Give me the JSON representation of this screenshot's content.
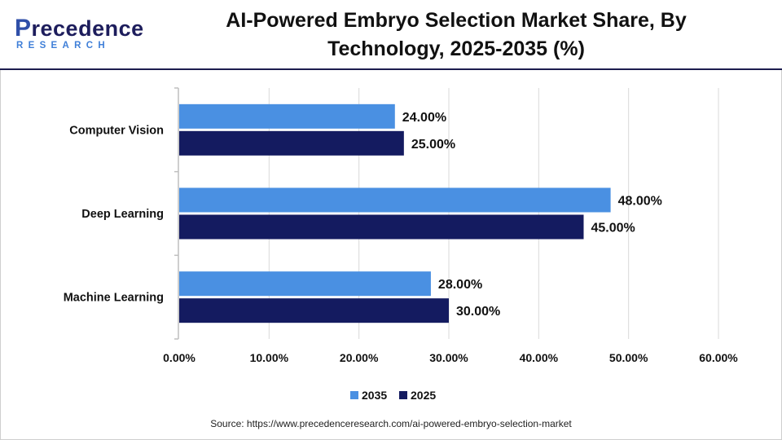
{
  "brand": {
    "logo_main_first": "P",
    "logo_main_rest": "recedence",
    "logo_sub": "RESEARCH"
  },
  "colors": {
    "series_2035": "#4a90e2",
    "series_2025": "#141b60",
    "header_rule": "#1d1d4f",
    "grid": "#d9d9d9"
  },
  "chart_data": {
    "type": "bar",
    "orientation": "horizontal",
    "title": "AI-Powered Embryo Selection Market Share, By Technology, 2025-2035 (%)",
    "categories": [
      "Computer Vision",
      "Deep Learning",
      "Machine Learning"
    ],
    "series": [
      {
        "name": "2035",
        "values": [
          24,
          48,
          28
        ],
        "labels": [
          "24.00%",
          "48.00%",
          "28.00%"
        ]
      },
      {
        "name": "2025",
        "values": [
          25,
          45,
          30
        ],
        "labels": [
          "25.00%",
          "45.00%",
          "30.00%"
        ]
      }
    ],
    "xlim": [
      0,
      60
    ],
    "xticks": [
      0,
      10,
      20,
      30,
      40,
      50,
      60
    ],
    "xtick_labels": [
      "0.00%",
      "10.00%",
      "20.00%",
      "30.00%",
      "40.00%",
      "50.00%",
      "60.00%"
    ],
    "grid": true,
    "legend_position": "bottom-center"
  },
  "source_text": "Source: https://www.precedenceresearch.com/ai-powered-embryo-selection-market"
}
